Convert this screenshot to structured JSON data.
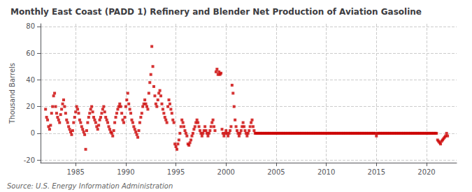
{
  "chart_data": {
    "type": "scatter",
    "title": "Monthly East Coast (PADD 1) Refinery and Blender Net Production of Aviation Gasoline",
    "ylabel": "Thousand Barrels",
    "annotations": [
      "Source: U.S. Energy Information Administration"
    ],
    "color": "#cc0000",
    "marker": "square",
    "grid": true,
    "xlim": [
      1981.5,
      2023
    ],
    "ylim": [
      -22,
      82
    ],
    "xticks": [
      1985,
      1990,
      1995,
      2000,
      2005,
      2010,
      2015,
      2020
    ],
    "yticks": [
      -20,
      0,
      20,
      40,
      60,
      80
    ],
    "x": [
      1982.0,
      1982.1,
      1982.2,
      1982.3,
      1982.4,
      1982.5,
      1982.6,
      1982.7,
      1982.8,
      1982.9,
      1983.0,
      1983.1,
      1983.2,
      1983.3,
      1983.4,
      1983.5,
      1983.6,
      1983.7,
      1983.8,
      1983.9,
      1984.0,
      1984.1,
      1984.2,
      1984.3,
      1984.4,
      1984.5,
      1984.6,
      1984.7,
      1984.8,
      1984.9,
      1985.0,
      1985.1,
      1985.2,
      1985.3,
      1985.4,
      1985.5,
      1985.6,
      1985.7,
      1985.8,
      1985.9,
      1986.0,
      1986.1,
      1986.2,
      1986.3,
      1986.4,
      1986.5,
      1986.6,
      1986.7,
      1986.8,
      1986.9,
      1987.0,
      1987.1,
      1987.2,
      1987.3,
      1987.4,
      1987.5,
      1987.6,
      1987.7,
      1987.8,
      1987.9,
      1988.0,
      1988.1,
      1988.2,
      1988.3,
      1988.4,
      1988.5,
      1988.6,
      1988.7,
      1988.8,
      1988.9,
      1989.0,
      1989.1,
      1989.2,
      1989.3,
      1989.4,
      1989.5,
      1989.6,
      1989.7,
      1989.8,
      1989.9,
      1990.0,
      1990.1,
      1990.2,
      1990.3,
      1990.4,
      1990.5,
      1990.6,
      1990.7,
      1990.8,
      1990.9,
      1991.0,
      1991.1,
      1991.2,
      1991.3,
      1991.4,
      1991.5,
      1991.6,
      1991.7,
      1991.8,
      1991.9,
      1992.0,
      1992.1,
      1992.2,
      1992.3,
      1992.4,
      1992.5,
      1992.6,
      1992.7,
      1992.8,
      1992.9,
      1993.0,
      1993.1,
      1993.2,
      1993.3,
      1993.4,
      1993.5,
      1993.6,
      1993.7,
      1993.8,
      1993.9,
      1994.0,
      1994.1,
      1994.2,
      1994.3,
      1994.4,
      1994.5,
      1994.6,
      1994.7,
      1994.8,
      1994.9,
      1995.0,
      1995.1,
      1995.2,
      1995.3,
      1995.4,
      1995.5,
      1995.6,
      1995.7,
      1995.8,
      1995.9,
      1996.0,
      1996.1,
      1996.2,
      1996.3,
      1996.4,
      1996.5,
      1996.6,
      1996.7,
      1996.8,
      1996.9,
      1997.0,
      1997.1,
      1997.2,
      1997.3,
      1997.4,
      1997.5,
      1997.6,
      1997.7,
      1997.8,
      1997.9,
      1998.0,
      1998.1,
      1998.2,
      1998.3,
      1998.4,
      1998.5,
      1998.6,
      1998.7,
      1998.8,
      1998.9,
      1999.0,
      1999.1,
      1999.2,
      1999.3,
      1999.4,
      1999.5,
      1999.6,
      1999.7,
      1999.8,
      1999.9,
      2000.0,
      2000.1,
      2000.2,
      2000.3,
      2000.4,
      2000.5,
      2000.6,
      2000.7,
      2000.8,
      2000.9,
      2001.0,
      2001.1,
      2001.2,
      2001.3,
      2001.4,
      2001.5,
      2001.6,
      2001.7,
      2001.8,
      2001.9,
      2002.0,
      2002.1,
      2002.2,
      2002.3,
      2002.4,
      2002.5,
      2002.6,
      2002.7,
      2002.8,
      2002.9,
      2003.0,
      2003.1,
      2003.2,
      2003.3,
      2003.4,
      2003.5,
      2003.6,
      2003.7,
      2003.8,
      2003.9,
      2004.0,
      2004.1,
      2004.2,
      2004.3,
      2004.4,
      2004.5,
      2004.6,
      2004.7,
      2004.8,
      2004.9,
      2005.0,
      2005.1,
      2005.2,
      2005.3,
      2005.4,
      2005.5,
      2005.6,
      2005.7,
      2005.8,
      2005.9,
      2006.0,
      2006.1,
      2006.2,
      2006.3,
      2006.4,
      2006.5,
      2006.6,
      2006.7,
      2006.8,
      2006.9,
      2007.0,
      2007.1,
      2007.2,
      2007.3,
      2007.4,
      2007.5,
      2007.6,
      2007.7,
      2007.8,
      2007.9,
      2008.0,
      2008.1,
      2008.2,
      2008.3,
      2008.4,
      2008.5,
      2008.6,
      2008.7,
      2008.8,
      2008.9,
      2009.0,
      2009.1,
      2009.2,
      2009.3,
      2009.4,
      2009.5,
      2009.6,
      2009.7,
      2009.8,
      2009.9,
      2010.0,
      2010.1,
      2010.2,
      2010.3,
      2010.4,
      2010.5,
      2010.6,
      2010.7,
      2010.8,
      2010.9,
      2011.0,
      2011.1,
      2011.2,
      2011.3,
      2011.4,
      2011.5,
      2011.6,
      2011.7,
      2011.8,
      2011.9,
      2012.0,
      2012.1,
      2012.2,
      2012.3,
      2012.4,
      2012.5,
      2012.6,
      2012.7,
      2012.8,
      2012.9,
      2013.0,
      2013.1,
      2013.2,
      2013.3,
      2013.4,
      2013.5,
      2013.6,
      2013.7,
      2013.8,
      2013.9,
      2014.0,
      2014.1,
      2014.2,
      2014.3,
      2014.4,
      2014.5,
      2014.6,
      2014.7,
      2014.8,
      2014.9,
      2015.0,
      2015.1,
      2015.2,
      2015.3,
      2015.4,
      2015.5,
      2015.6,
      2015.7,
      2015.8,
      2015.9,
      2016.0,
      2016.1,
      2016.2,
      2016.3,
      2016.4,
      2016.5,
      2016.6,
      2016.7,
      2016.8,
      2016.9,
      2017.0,
      2017.1,
      2017.2,
      2017.3,
      2017.4,
      2017.5,
      2017.6,
      2017.7,
      2017.8,
      2017.9,
      2018.0,
      2018.1,
      2018.2,
      2018.3,
      2018.4,
      2018.5,
      2018.6,
      2018.7,
      2018.8,
      2018.9,
      2019.0,
      2019.1,
      2019.2,
      2019.3,
      2019.4,
      2019.5,
      2019.6,
      2019.7,
      2019.8,
      2019.9,
      2020.0,
      2020.1,
      2020.2,
      2020.3,
      2020.4,
      2020.5,
      2020.6,
      2020.7,
      2020.8,
      2020.9,
      2021.0,
      2021.1,
      2021.2,
      2021.3,
      2021.4,
      2021.5,
      2021.6,
      2021.7,
      2021.8,
      2021.9,
      2022.0,
      2022.1
    ],
    "values": [
      18,
      12,
      10,
      5,
      3,
      6,
      15,
      20,
      28,
      30,
      20,
      15,
      12,
      10,
      8,
      14,
      18,
      22,
      25,
      20,
      15,
      10,
      8,
      5,
      3,
      1,
      -1,
      2,
      8,
      12,
      16,
      20,
      18,
      15,
      10,
      8,
      5,
      3,
      1,
      -1,
      -12,
      2,
      8,
      12,
      15,
      18,
      20,
      16,
      12,
      10,
      8,
      5,
      3,
      6,
      10,
      12,
      15,
      18,
      20,
      16,
      12,
      10,
      8,
      5,
      3,
      1,
      0,
      -2,
      2,
      8,
      12,
      15,
      18,
      20,
      22,
      20,
      15,
      10,
      8,
      12,
      20,
      25,
      30,
      22,
      18,
      15,
      10,
      8,
      5,
      3,
      1,
      -1,
      -3,
      2,
      8,
      12,
      15,
      20,
      22,
      25,
      22,
      20,
      18,
      30,
      38,
      44,
      65,
      50,
      35,
      28,
      22,
      20,
      25,
      30,
      32,
      28,
      22,
      18,
      15,
      12,
      10,
      8,
      20,
      25,
      22,
      18,
      15,
      10,
      8,
      -8,
      -10,
      -12,
      -8,
      -5,
      0,
      5,
      10,
      8,
      5,
      2,
      0,
      -2,
      -8,
      -9,
      -7,
      -5,
      -2,
      0,
      3,
      5,
      8,
      10,
      8,
      5,
      2,
      0,
      -2,
      0,
      2,
      5,
      2,
      0,
      -2,
      0,
      2,
      5,
      8,
      10,
      5,
      2,
      46,
      48,
      44,
      46,
      44,
      45,
      3,
      0,
      -2,
      0,
      2,
      0,
      -2,
      0,
      2,
      5,
      36,
      30,
      20,
      10,
      5,
      2,
      0,
      -2,
      0,
      2,
      5,
      8,
      5,
      2,
      0,
      -2,
      0,
      2,
      5,
      8,
      10,
      5,
      2,
      0,
      0,
      0,
      0,
      0,
      0,
      0,
      0,
      0,
      0,
      0,
      0,
      0,
      0,
      0,
      0,
      0,
      0,
      0,
      0,
      0,
      0,
      0,
      0,
      0,
      0,
      0,
      0,
      0,
      0,
      0,
      0,
      0,
      0,
      0,
      0,
      0,
      0,
      0,
      0,
      0,
      0,
      0,
      0,
      0,
      0,
      0,
      0,
      0,
      0,
      0,
      0,
      0,
      0,
      0,
      0,
      0,
      0,
      0,
      0,
      0,
      0,
      0,
      0,
      0,
      0,
      0,
      0,
      0,
      0,
      0,
      0,
      0,
      0,
      0,
      0,
      0,
      0,
      0,
      0,
      0,
      0,
      0,
      0,
      0,
      0,
      0,
      0,
      0,
      0,
      0,
      0,
      0,
      0,
      0,
      0,
      0,
      0,
      0,
      0,
      0,
      0,
      0,
      0,
      0,
      0,
      0,
      0,
      0,
      0,
      0,
      0,
      0,
      0,
      0,
      0,
      0,
      0,
      0,
      0,
      0,
      -2,
      0,
      0,
      0,
      0,
      0,
      0,
      0,
      0,
      0,
      0,
      0,
      0,
      0,
      0,
      0,
      0,
      0,
      0,
      0,
      0,
      0,
      0,
      0,
      0,
      0,
      0,
      0,
      0,
      0,
      0,
      0,
      0,
      0,
      0,
      0,
      0,
      0,
      0,
      0,
      0,
      0,
      0,
      0,
      0,
      0,
      0,
      0,
      0,
      0,
      0,
      0,
      0,
      0,
      0,
      0,
      0,
      0,
      0,
      0,
      0,
      -5,
      -6,
      -7,
      -8,
      -6,
      -5,
      -4,
      -3,
      -2,
      0,
      -2
    ]
  }
}
